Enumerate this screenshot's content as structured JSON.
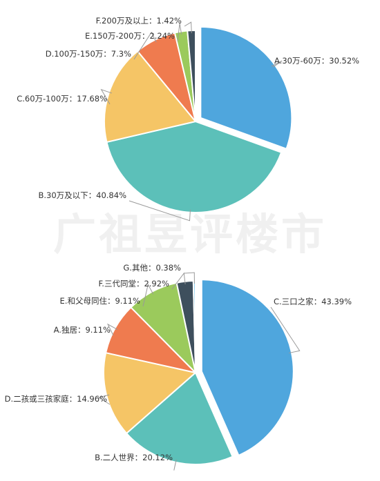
{
  "chart_data": [
    {
      "type": "pie",
      "categories": [
        "A.30万-60万",
        "B.30万及以下",
        "C.60万-100万",
        "D.100万-150万",
        "E.150万-200万",
        "F.200万及以上"
      ],
      "values": [
        30.52,
        40.84,
        17.68,
        7.3,
        2.24,
        1.42
      ],
      "value_labels": [
        "30.52%",
        "40.84%",
        "17.68%",
        "7.3%",
        "2.24%",
        "1.42%"
      ],
      "colors": [
        "#4fa6dd",
        "#5cc0b9",
        "#f5c566",
        "#ef7b4f",
        "#9bca5c",
        "#3e4f5d"
      ]
    },
    {
      "type": "pie",
      "categories": [
        "C.三口之家",
        "B.二人世界",
        "D.二孩或三孩家庭",
        "A.独居",
        "E.和父母同住",
        "F.三代同堂",
        "G.其他"
      ],
      "values": [
        43.39,
        20.12,
        14.96,
        9.11,
        9.11,
        2.92,
        0.38
      ],
      "value_labels": [
        "43.39%",
        "20.12%",
        "14.96%",
        "9.11%",
        "9.11%",
        "2.92%",
        "0.38%"
      ],
      "colors": [
        "#4fa6dd",
        "#5cc0b9",
        "#f5c566",
        "#ef7b4f",
        "#9bca5c",
        "#3e4f5d",
        "#8fd0ef"
      ]
    }
  ],
  "watermark": "广祖昱评楼市",
  "separator": "："
}
